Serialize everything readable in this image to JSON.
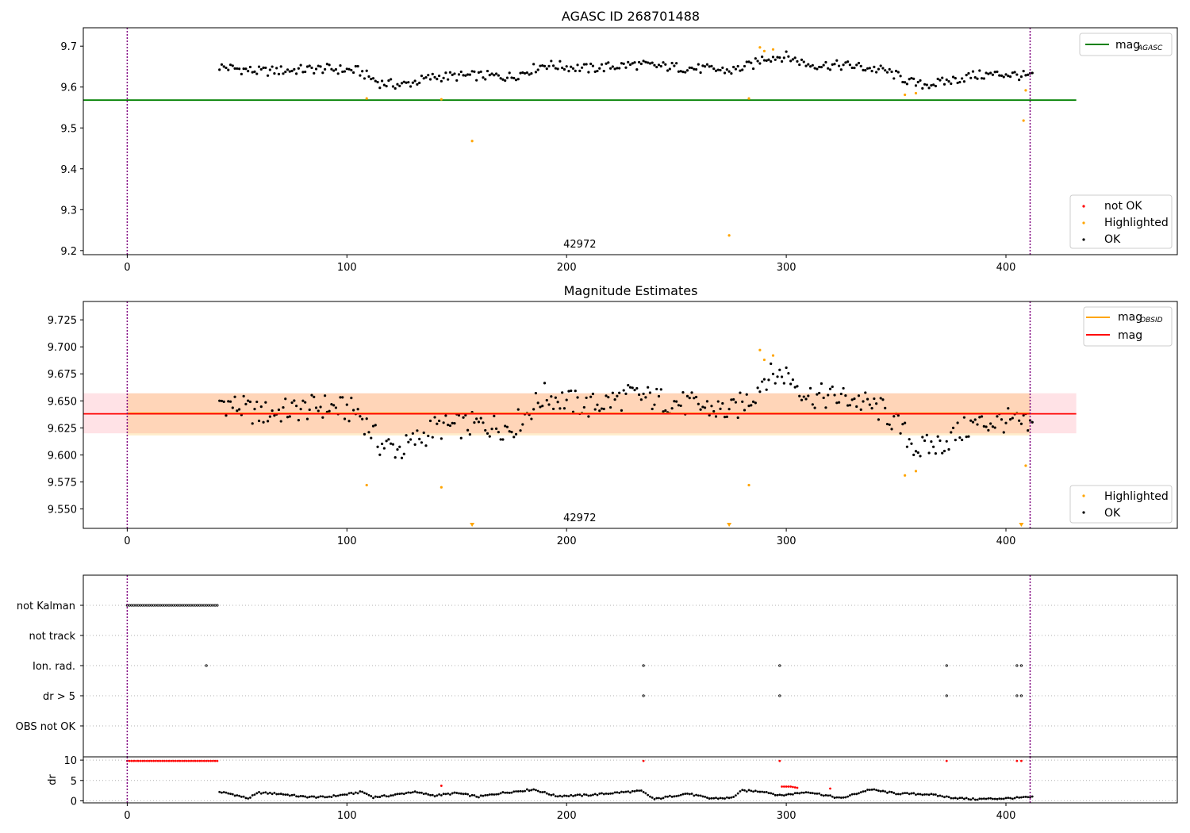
{
  "chart_data": [
    {
      "type": "scatter",
      "title": "AGASC ID 268701488",
      "xlim": [
        -20,
        478
      ],
      "ylim": [
        9.19,
        9.745
      ],
      "xticks": [
        0,
        100,
        200,
        300,
        400
      ],
      "yticks": [
        9.2,
        9.3,
        9.4,
        9.5,
        9.6,
        9.7
      ],
      "ytick_labels": [
        "9.2",
        "9.3",
        "9.4",
        "9.5",
        "9.6",
        "9.7"
      ],
      "obsid_label": "42972",
      "obsid_label_x": 206,
      "vlines": [
        0,
        411
      ],
      "reference_line": {
        "label_main": "mag",
        "label_sub": "AGASC",
        "value": 9.568,
        "x_range": [
          -20,
          432
        ],
        "color": "#008000"
      },
      "legend_points": [
        {
          "label": "not OK",
          "color": "#ff0000"
        },
        {
          "label": "Highlighted",
          "color": "#ffa500"
        },
        {
          "label": "OK",
          "color": "#000000"
        }
      ],
      "series": [
        {
          "name": "OK",
          "color": "#000000",
          "x_start": 42,
          "x_end": 412,
          "x_step": 1,
          "base_x": [
            42,
            60,
            90,
            105,
            115,
            125,
            140,
            160,
            175,
            190,
            210,
            230,
            260,
            275,
            285,
            290,
            300,
            310,
            330,
            345,
            360,
            370,
            385,
            400,
            412
          ],
          "base_y": [
            9.65,
            9.638,
            9.645,
            9.64,
            9.61,
            9.605,
            9.625,
            9.628,
            9.625,
            9.655,
            9.645,
            9.655,
            9.645,
            9.64,
            9.655,
            9.672,
            9.675,
            9.655,
            9.652,
            9.64,
            9.605,
            9.61,
            9.628,
            9.632,
            9.625
          ]
        },
        {
          "name": "Highlighted",
          "color": "#ffa500",
          "x": [
            109,
            143,
            157,
            274,
            283,
            288,
            290,
            294,
            354,
            359,
            408,
            409
          ],
          "y": [
            9.572,
            9.57,
            9.468,
            9.237,
            9.572,
            9.697,
            9.688,
            9.692,
            9.581,
            9.585,
            9.518,
            9.592
          ]
        }
      ]
    },
    {
      "type": "scatter",
      "title": "Magnitude Estimates",
      "xlim": [
        -20,
        478
      ],
      "ylim": [
        9.532,
        9.742
      ],
      "xticks": [
        0,
        100,
        200,
        300,
        400
      ],
      "yticks": [
        9.55,
        9.575,
        9.6,
        9.625,
        9.65,
        9.675,
        9.7,
        9.725
      ],
      "ytick_labels": [
        "9.550",
        "9.575",
        "9.600",
        "9.625",
        "9.650",
        "9.675",
        "9.700",
        "9.725"
      ],
      "obsid_label": "42972",
      "obsid_label_x": 206,
      "vlines": [
        0,
        411
      ],
      "bands": [
        {
          "y": [
            9.62,
            9.657
          ],
          "x": [
            -20,
            432
          ],
          "color": "#ffb6c1",
          "alpha": 0.4
        },
        {
          "y": [
            9.618,
            9.657
          ],
          "x": [
            0,
            411
          ],
          "color": "#ffa500",
          "alpha": 0.2
        }
      ],
      "lines": [
        {
          "label": "mag",
          "label_sub": "OBSID",
          "value": 9.6385,
          "x": [
            0,
            411
          ],
          "color": "#ffa500"
        },
        {
          "label": "mag",
          "value": 9.638,
          "x": [
            -20,
            432
          ],
          "color": "#ff0000"
        }
      ],
      "legend_points": [
        {
          "label": "Highlighted",
          "color": "#ffa500"
        },
        {
          "label": "OK",
          "color": "#000000"
        }
      ],
      "clipped_markers_x": [
        157,
        274,
        407
      ],
      "series": [
        {
          "name": "OK",
          "color": "#000000",
          "base_x": [
            42,
            60,
            90,
            105,
            115,
            125,
            140,
            160,
            175,
            190,
            210,
            230,
            260,
            275,
            285,
            290,
            300,
            310,
            330,
            345,
            360,
            370,
            385,
            400,
            412
          ],
          "base_y": [
            9.65,
            9.638,
            9.645,
            9.64,
            9.61,
            9.605,
            9.625,
            9.628,
            9.625,
            9.655,
            9.645,
            9.655,
            9.645,
            9.64,
            9.655,
            9.672,
            9.675,
            9.655,
            9.652,
            9.64,
            9.605,
            9.61,
            9.628,
            9.632,
            9.625
          ]
        },
        {
          "name": "Highlighted",
          "color": "#ffa500",
          "x": [
            109,
            143,
            283,
            288,
            290,
            294,
            354,
            359,
            409
          ],
          "y": [
            9.572,
            9.57,
            9.572,
            9.697,
            9.688,
            9.692,
            9.581,
            9.585,
            9.59
          ]
        }
      ]
    },
    {
      "type": "scatter",
      "xlim": [
        -20,
        478
      ],
      "xticks": [
        0,
        100,
        200,
        300,
        400
      ],
      "vlines": [
        0,
        411
      ],
      "flag_rows": [
        "not Kalman",
        "not track",
        "Ion. rad.",
        "dr > 5",
        "OBS not OK"
      ],
      "flags": {
        "not Kalman": {
          "x_range": [
            0,
            41
          ]
        },
        "not track": {
          "x_range": []
        },
        "Ion. rad.": {
          "x": [
            36,
            235,
            297,
            373,
            405,
            407
          ]
        },
        "dr > 5": {
          "x": [
            235,
            297,
            373,
            405,
            407
          ]
        },
        "OBS not OK": {
          "x_range": []
        }
      }
    },
    {
      "type": "scatter",
      "ylabel": "dr",
      "xlim": [
        -20,
        478
      ],
      "ylim": [
        -0.5,
        10.8
      ],
      "xticks": [
        0,
        100,
        200,
        300,
        400
      ],
      "yticks": [
        0,
        5,
        10
      ],
      "ytick_labels": [
        "0",
        "5",
        "10"
      ],
      "vlines": [
        0,
        411
      ],
      "red_points": {
        "flat_x_range": [
          0,
          41
        ],
        "flat_value": 9.8,
        "x": [
          143,
          235,
          297,
          298,
          299,
          300,
          301,
          302,
          303,
          304,
          305,
          320,
          373,
          405,
          407
        ],
        "y": [
          3.7,
          9.8,
          9.8,
          3.5,
          3.5,
          3.5,
          3.5,
          3.5,
          3.4,
          3.3,
          3.2,
          3.0,
          9.8,
          9.8,
          9.8
        ]
      },
      "base_x": [
        42,
        48,
        55,
        60,
        70,
        80,
        90,
        100,
        107,
        112,
        120,
        130,
        140,
        150,
        160,
        170,
        185,
        195,
        210,
        225,
        234,
        240,
        255,
        265,
        275,
        280,
        290,
        297,
        310,
        325,
        338,
        350,
        365,
        375,
        385,
        400,
        412
      ],
      "base_y": [
        2.2,
        1.6,
        0.6,
        2.0,
        1.7,
        1.0,
        0.9,
        1.6,
        2.2,
        0.9,
        1.3,
        2.2,
        1.3,
        1.9,
        1.0,
        1.9,
        2.8,
        1.2,
        1.4,
        2.1,
        2.4,
        0.4,
        1.8,
        0.6,
        0.7,
        2.5,
        2.3,
        1.3,
        2.2,
        0.6,
        2.8,
        1.8,
        1.6,
        0.8,
        0.4,
        0.6,
        0.9
      ]
    }
  ]
}
